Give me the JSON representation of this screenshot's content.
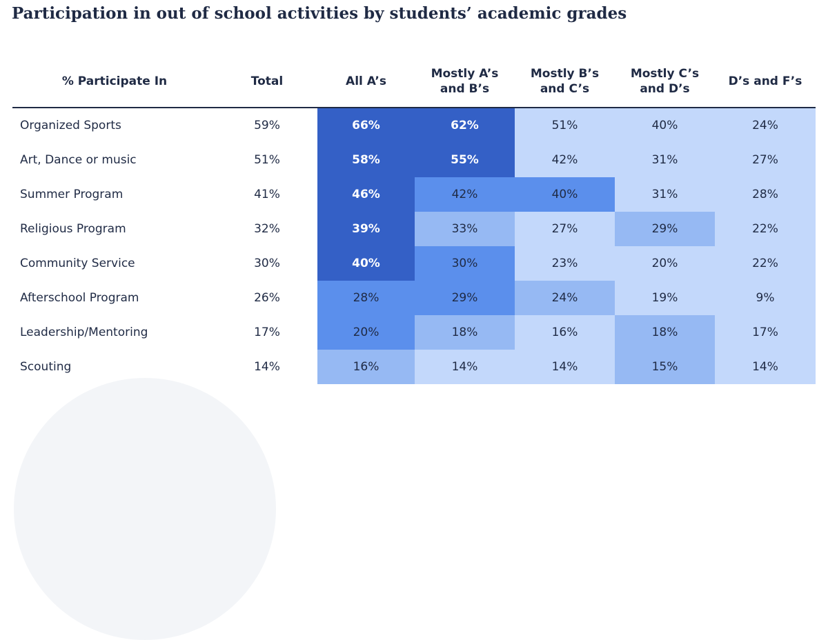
{
  "title": "Participation in out of school activities by students’ academic grades",
  "colors": {
    "level4": "#3460c6",
    "level3": "#5b8fec",
    "level2": "#96b9f3",
    "level1": "#c3d8fb",
    "header_text": "#1f2a44"
  },
  "chart_data": {
    "type": "table",
    "title": "Participation in out of school activities by students’ academic grades",
    "columns": [
      "% Participate In",
      "Total",
      "All A’s",
      "Mostly A’s\nand B’s",
      "Mostly B’s\nand C’s",
      "Mostly C’s\nand D’s",
      "D’s and F’s"
    ],
    "rows": [
      {
        "label": "Organized Sports",
        "total": "59%",
        "values": [
          "66%",
          "62%",
          "51%",
          "40%",
          "24%"
        ],
        "levels": [
          4,
          4,
          1,
          1,
          1
        ]
      },
      {
        "label": "Art, Dance or music",
        "total": "51%",
        "values": [
          "58%",
          "55%",
          "42%",
          "31%",
          "27%"
        ],
        "levels": [
          4,
          4,
          1,
          1,
          1
        ]
      },
      {
        "label": "Summer Program",
        "total": "41%",
        "values": [
          "46%",
          "42%",
          "40%",
          "31%",
          "28%"
        ],
        "levels": [
          4,
          3,
          3,
          1,
          1
        ]
      },
      {
        "label": "Religious Program",
        "total": "32%",
        "values": [
          "39%",
          "33%",
          "27%",
          "29%",
          "22%"
        ],
        "levels": [
          4,
          2,
          1,
          2,
          1
        ]
      },
      {
        "label": "Community Service",
        "total": "30%",
        "values": [
          "40%",
          "30%",
          "23%",
          "20%",
          "22%"
        ],
        "levels": [
          4,
          3,
          1,
          1,
          1
        ]
      },
      {
        "label": "Afterschool Program",
        "total": "26%",
        "values": [
          "28%",
          "29%",
          "24%",
          "19%",
          "9%"
        ],
        "levels": [
          3,
          3,
          2,
          1,
          1
        ]
      },
      {
        "label": "Leadership/Mentoring",
        "total": "17%",
        "values": [
          "20%",
          "18%",
          "16%",
          "18%",
          "17%"
        ],
        "levels": [
          3,
          2,
          1,
          2,
          1
        ]
      },
      {
        "label": "Scouting",
        "total": "14%",
        "values": [
          "16%",
          "14%",
          "14%",
          "15%",
          "14%"
        ],
        "levels": [
          2,
          1,
          1,
          2,
          1
        ]
      }
    ]
  }
}
